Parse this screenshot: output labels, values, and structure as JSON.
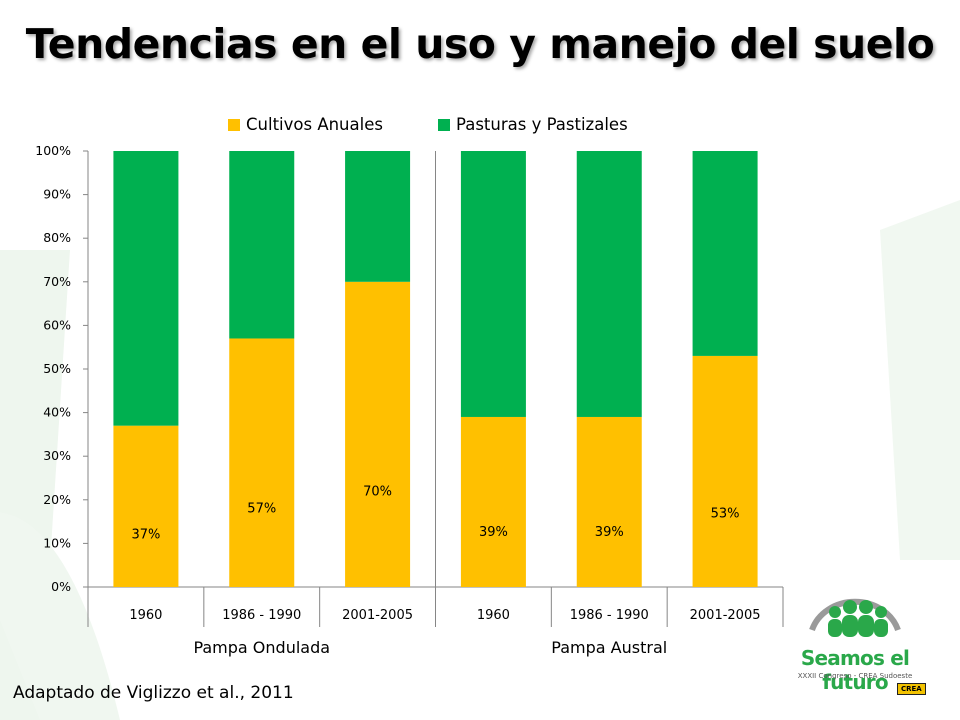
{
  "slide": {
    "title": "Tendencias en el uso y manejo del suelo",
    "source": "Adaptado de Viglizzo et al., 2011"
  },
  "logo": {
    "brand": "Seamos el futuro",
    "subtitle": "XXXII Congreso - CREA Sudoeste",
    "badge": "CREA"
  },
  "chart_data": {
    "type": "bar",
    "stacked": true,
    "percent_stacked": true,
    "categories": [
      "1960",
      "1986 - 1990",
      "2001-2005",
      "1960",
      "1986 - 1990",
      "2001-2005"
    ],
    "groups": [
      {
        "label": "Pampa Ondulada",
        "categories": [
          0,
          1,
          2
        ]
      },
      {
        "label": "Pampa Austral",
        "categories": [
          3,
          4,
          5
        ]
      }
    ],
    "series": [
      {
        "name": "Cultivos Anuales",
        "color": "#ffc000",
        "values": [
          37,
          57,
          70,
          39,
          39,
          53
        ],
        "labels": [
          "37%",
          "57%",
          "70%",
          "39%",
          "39%",
          "53%"
        ]
      },
      {
        "name": "Pasturas y Pastizales",
        "color": "#00b050",
        "values": [
          63,
          43,
          30,
          61,
          61,
          47
        ]
      }
    ],
    "ylim": [
      0,
      100
    ],
    "yticks": [
      "0%",
      "10%",
      "20%",
      "30%",
      "40%",
      "50%",
      "60%",
      "70%",
      "80%",
      "90%",
      "100%"
    ],
    "grid": false,
    "legend": "top"
  }
}
